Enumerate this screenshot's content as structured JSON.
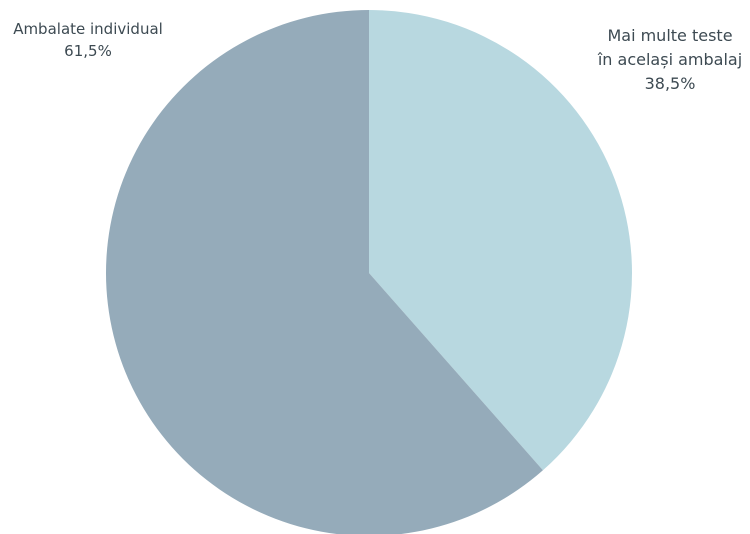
{
  "chart_data": {
    "type": "pie",
    "title": "",
    "slices": [
      {
        "label_lines": [
          "Ambalate individual"
        ],
        "value": 61.5,
        "value_label": "61,5%",
        "color": "#95abba"
      },
      {
        "label_lines": [
          "Mai multe teste",
          "în același ambalaj"
        ],
        "value": 38.5,
        "value_label": "38,5%",
        "color": "#b8d8e0"
      }
    ],
    "start_angle": "12 o'clock",
    "direction": "clockwise",
    "legend": "none"
  }
}
